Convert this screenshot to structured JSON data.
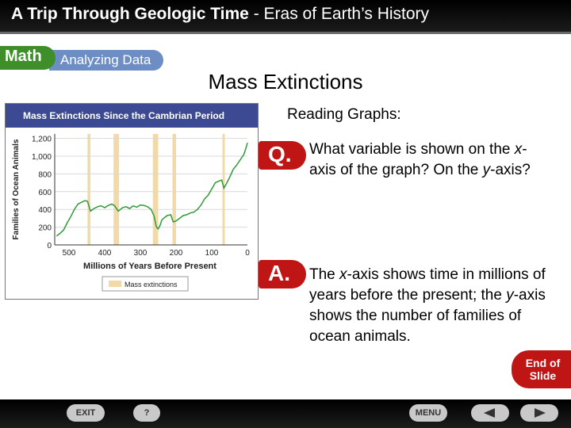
{
  "header": {
    "title_bold": "A Trip Through Geologic Time",
    "title_rest": " - Eras of Earth’s History"
  },
  "tabs": {
    "math": "Math",
    "analyzing": "Analyzing Data"
  },
  "slide_title": "Mass Extinctions",
  "subhead": "Reading Graphs:",
  "question": {
    "badge": "Q.",
    "text_parts": [
      "What variable is shown on the ",
      "x",
      "-axis of the graph? On the ",
      "y",
      "-axis?"
    ]
  },
  "answer": {
    "badge": "A.",
    "text_parts": [
      "The ",
      "x",
      "-axis shows time in millions of years before the present; the ",
      "y",
      "-axis shows the number of families of ocean animals."
    ]
  },
  "end_button": {
    "line1": "End of",
    "line2": "Slide"
  },
  "nav": {
    "exit": "EXIT",
    "help": "?",
    "menu": "MENU",
    "prev_icon": "back-arrow-icon",
    "next_icon": "forward-arrow-icon"
  },
  "colors": {
    "accent_red": "#c01515",
    "header_blue": "#3b4a93",
    "line_green": "#2f9a37",
    "extinction_band": "#f2d9a6"
  },
  "chart_data": {
    "type": "line",
    "title": "Mass Extinctions Since the Cambrian Period",
    "xlabel": "Millions of Years Before Present",
    "ylabel": "Families of Ocean Animals",
    "x_reversed": true,
    "xlim": [
      540,
      0
    ],
    "ylim": [
      0,
      1250
    ],
    "xticks": [
      500,
      400,
      300,
      200,
      100,
      0
    ],
    "yticks": [
      0,
      200,
      400,
      600,
      800,
      1000,
      1200
    ],
    "legend": [
      "Mass extinctions"
    ],
    "legend_position": "bottom",
    "extinction_bands": [
      [
        448,
        440
      ],
      [
        375,
        360
      ],
      [
        265,
        250
      ],
      [
        210,
        200
      ],
      [
        70,
        64
      ]
    ],
    "x": [
      535,
      525,
      515,
      505,
      495,
      485,
      475,
      465,
      455,
      448,
      440,
      430,
      420,
      410,
      400,
      390,
      380,
      372,
      362,
      350,
      340,
      330,
      320,
      310,
      300,
      290,
      280,
      270,
      262,
      255,
      250,
      245,
      240,
      235,
      225,
      215,
      208,
      200,
      190,
      180,
      170,
      160,
      150,
      140,
      130,
      120,
      110,
      100,
      90,
      80,
      72,
      66,
      60,
      50,
      40,
      30,
      20,
      10,
      5,
      0
    ],
    "y": [
      100,
      130,
      170,
      250,
      320,
      400,
      460,
      480,
      500,
      490,
      380,
      410,
      430,
      440,
      420,
      445,
      460,
      440,
      380,
      420,
      430,
      410,
      440,
      425,
      450,
      445,
      430,
      400,
      330,
      200,
      180,
      220,
      280,
      300,
      330,
      340,
      260,
      270,
      300,
      330,
      340,
      360,
      370,
      400,
      450,
      520,
      560,
      630,
      700,
      720,
      730,
      640,
      680,
      760,
      850,
      900,
      960,
      1020,
      1080,
      1150
    ]
  }
}
